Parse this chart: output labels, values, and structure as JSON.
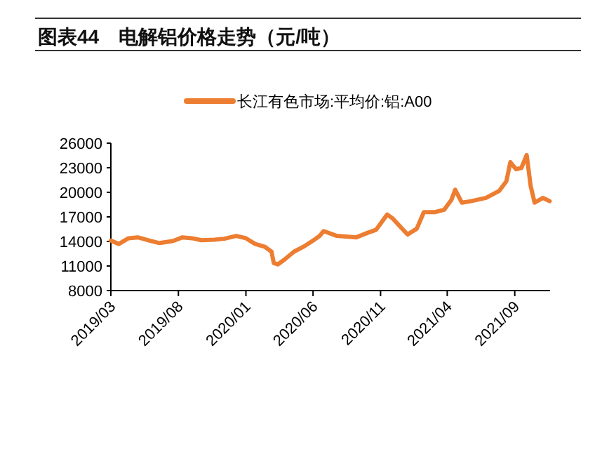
{
  "chart_data": {
    "type": "line",
    "title": "图表44　电解铝价格走势（元/吨）",
    "x": [
      "2019-03-01",
      "2019-03-19",
      "2019-04-10",
      "2019-05-01",
      "2019-05-28",
      "2019-06-19",
      "2019-07-19",
      "2019-08-10",
      "2019-09-01",
      "2019-09-22",
      "2019-10-22",
      "2019-11-13",
      "2019-12-10",
      "2020-01-01",
      "2020-01-22",
      "2020-02-13",
      "2020-02-28",
      "2020-03-04",
      "2020-03-13",
      "2020-03-28",
      "2020-04-19",
      "2020-05-10",
      "2020-06-01",
      "2020-06-16",
      "2020-06-25",
      "2020-07-25",
      "2020-09-07",
      "2020-10-04",
      "2020-10-22",
      "2020-11-16",
      "2020-11-28",
      "2021-01-01",
      "2021-01-22",
      "2021-02-07",
      "2021-03-04",
      "2021-03-25",
      "2021-04-10",
      "2021-04-19",
      "2021-05-04",
      "2021-05-25",
      "2021-06-28",
      "2021-07-28",
      "2021-08-13",
      "2021-08-22",
      "2021-09-04",
      "2021-09-16",
      "2021-09-28",
      "2021-10-07",
      "2021-10-16",
      "2021-11-04",
      "2021-11-19"
    ],
    "series": [
      {
        "name": "长江有色市场:平均价:铝:A00",
        "color": "#ed7d31",
        "values": [
          14100,
          13690,
          14390,
          14500,
          14100,
          13800,
          14040,
          14500,
          14390,
          14150,
          14210,
          14330,
          14680,
          14390,
          13690,
          13340,
          12760,
          11370,
          11190,
          11770,
          12760,
          13340,
          14100,
          14680,
          15260,
          14680,
          14500,
          15080,
          15430,
          17290,
          16830,
          14850,
          15550,
          17580,
          17580,
          17870,
          19030,
          20310,
          18740,
          18920,
          19320,
          20190,
          21350,
          23680,
          22810,
          22980,
          24550,
          20770,
          18740,
          19320,
          18920
        ]
      }
    ],
    "xlim": [
      "2019-03-01",
      "2021-11-20"
    ],
    "xticks": [
      {
        "value": "2019-03",
        "label": "2019/03"
      },
      {
        "value": "2019-08",
        "label": "2019/08"
      },
      {
        "value": "2020-01",
        "label": "2020/01"
      },
      {
        "value": "2020-06",
        "label": "2020/06"
      },
      {
        "value": "2020-11",
        "label": "2020/11"
      },
      {
        "value": "2021-04",
        "label": "2021/04"
      },
      {
        "value": "2021-09",
        "label": "2021/09"
      }
    ],
    "ylim": [
      8000,
      26000
    ],
    "yticks": [
      8000,
      11000,
      14000,
      17000,
      20000,
      23000,
      26000
    ],
    "grid": false,
    "legend": "top",
    "marker": "none",
    "line_style": "solid"
  }
}
